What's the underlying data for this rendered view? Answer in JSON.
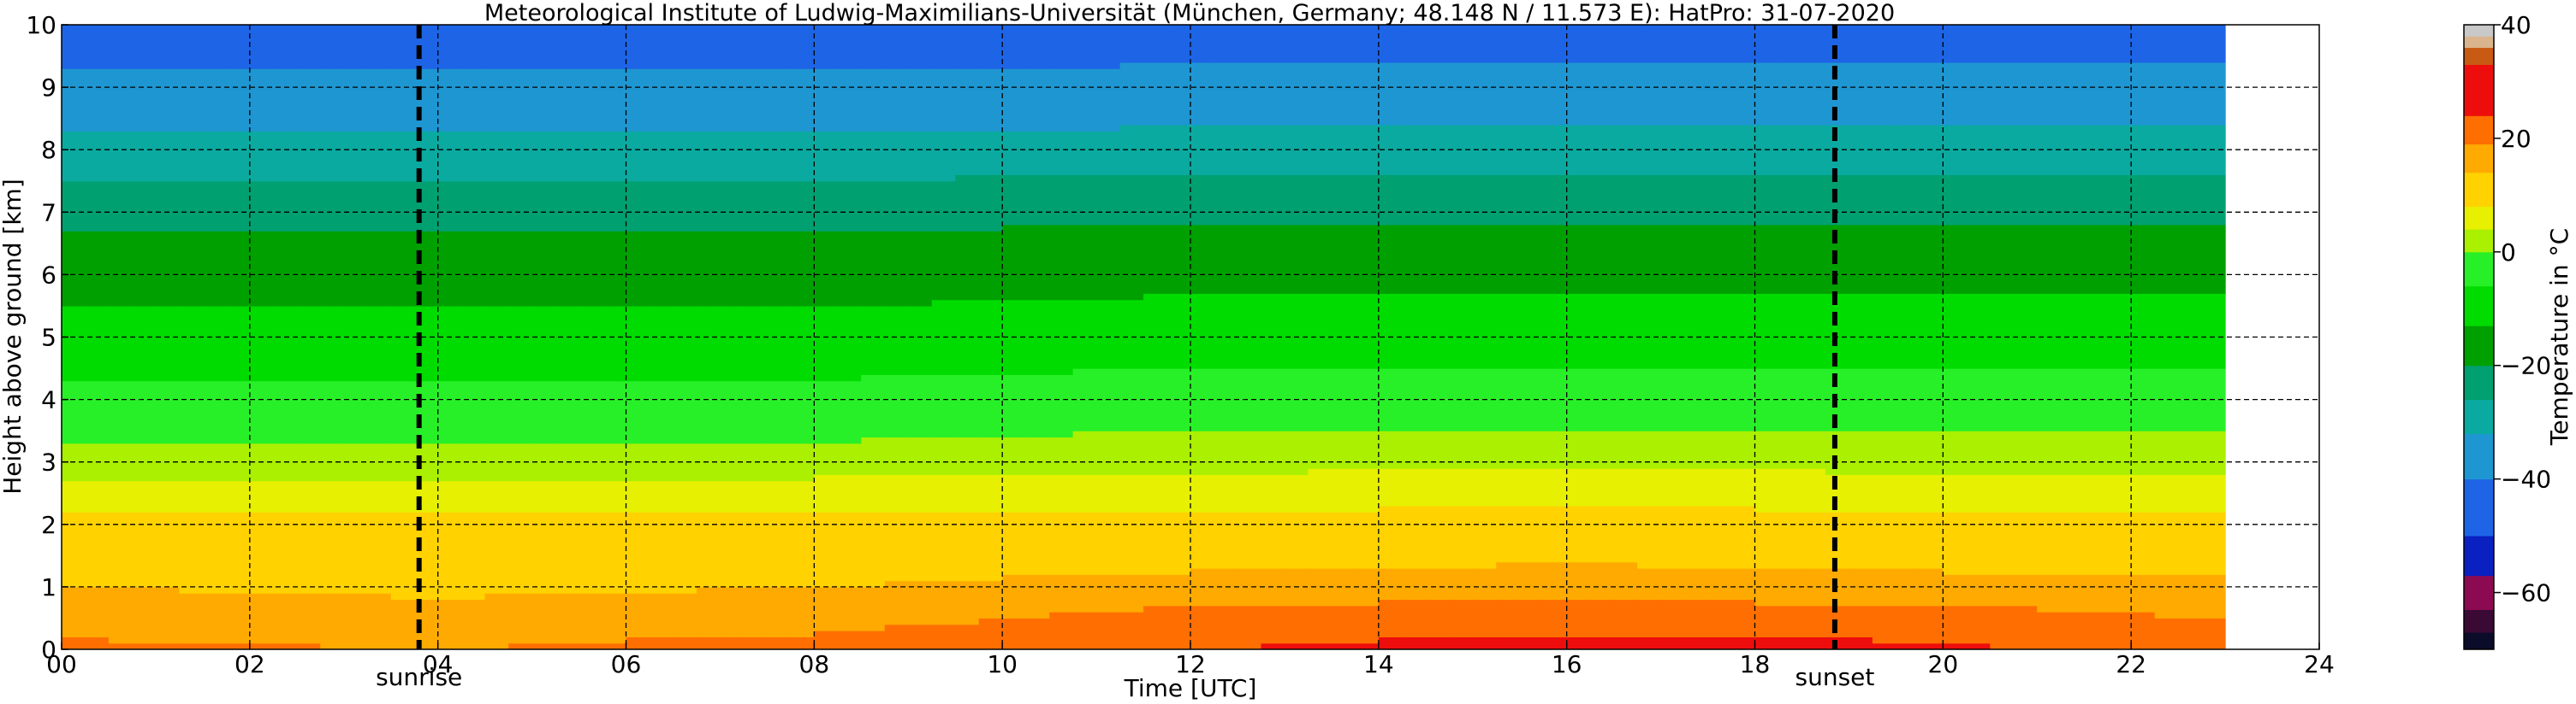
{
  "chart_data": {
    "type": "heatmap",
    "title": "Meteorological Institute of Ludwig-Maximilians-Universität (München, Germany; 48.148 N / 11.573 E):    HatPro: 31-07-2020",
    "xlabel": "Time [UTC]",
    "ylabel": "Height above ground [km]",
    "xlim": [
      0,
      24
    ],
    "ylim": [
      0,
      10
    ],
    "x_ticks": [
      0,
      2,
      4,
      6,
      8,
      10,
      12,
      14,
      16,
      18,
      20,
      22,
      24
    ],
    "x_tick_labels": [
      "00",
      "02",
      "04",
      "06",
      "08",
      "10",
      "12",
      "14",
      "16",
      "18",
      "20",
      "22",
      "24"
    ],
    "y_ticks": [
      0,
      1,
      2,
      3,
      4,
      5,
      6,
      7,
      8,
      9,
      10
    ],
    "y_tick_labels": [
      "0",
      "1",
      "2",
      "3",
      "4",
      "5",
      "6",
      "7",
      "8",
      "9",
      "10"
    ],
    "grid": true,
    "data_end_time": 23.0,
    "heights_km": [
      0,
      0.5,
      1,
      1.5,
      2,
      2.5,
      3,
      3.5,
      4,
      5,
      6,
      7,
      8,
      9,
      10
    ],
    "times_utc": [
      0,
      4,
      8,
      12,
      16,
      20,
      23
    ],
    "temperature_c": [
      [
        20,
        19,
        21,
        24,
        26,
        25,
        22
      ],
      [
        17,
        16,
        17,
        21,
        22,
        21,
        19
      ],
      [
        14,
        13,
        14,
        16,
        17,
        16,
        15
      ],
      [
        11,
        11,
        11,
        12,
        13,
        12,
        12
      ],
      [
        9,
        9,
        9,
        9,
        10,
        9,
        9
      ],
      [
        6,
        6,
        6,
        6,
        7,
        6,
        6
      ],
      [
        2,
        2,
        2,
        3,
        3,
        3,
        3
      ],
      [
        -1,
        -1,
        -1,
        0,
        0,
        0,
        0
      ],
      [
        -4,
        -4,
        -4,
        -3,
        -3,
        -3,
        -3
      ],
      [
        -10,
        -10,
        -10,
        -9,
        -9,
        -9,
        -9
      ],
      [
        -16,
        -16,
        -16,
        -15,
        -15,
        -15,
        -15
      ],
      [
        -22,
        -22,
        -22,
        -21,
        -21,
        -21,
        -21
      ],
      [
        -30,
        -30,
        -30,
        -29,
        -29,
        -29,
        -29
      ],
      [
        -38,
        -38,
        -38,
        -37,
        -37,
        -37,
        -37
      ],
      [
        -46,
        -46,
        -46,
        -45,
        -45,
        -45,
        -45
      ]
    ],
    "annotations": [
      {
        "label": "sunrise",
        "time_utc": 3.8
      },
      {
        "label": "sunset",
        "time_utc": 18.85
      }
    ],
    "colorbar": {
      "label": "Temperature in °C",
      "range": [
        -70,
        40
      ],
      "ticks": [
        40,
        20,
        0,
        -20,
        -40,
        -60
      ],
      "tick_labels": [
        "40",
        "20",
        "0",
        "−20",
        "−40",
        "−60"
      ],
      "colors": [
        {
          "from": -70,
          "to": -67,
          "color": "#0b0b2a"
        },
        {
          "from": -67,
          "to": -63,
          "color": "#3a0a35"
        },
        {
          "from": -63,
          "to": -57,
          "color": "#8b0a52"
        },
        {
          "from": -57,
          "to": -50,
          "color": "#0a20c0"
        },
        {
          "from": -50,
          "to": -40,
          "color": "#1e64e6"
        },
        {
          "from": -40,
          "to": -32,
          "color": "#1e96d2"
        },
        {
          "from": -32,
          "to": -26,
          "color": "#0aaaa0"
        },
        {
          "from": -26,
          "to": -20,
          "color": "#00a070"
        },
        {
          "from": -20,
          "to": -13,
          "color": "#00a000"
        },
        {
          "from": -13,
          "to": -6,
          "color": "#00dc00"
        },
        {
          "from": -6,
          "to": 0,
          "color": "#28f028"
        },
        {
          "from": 0,
          "to": 4,
          "color": "#aaf000"
        },
        {
          "from": 4,
          "to": 8,
          "color": "#e6f000"
        },
        {
          "from": 8,
          "to": 14,
          "color": "#ffd200"
        },
        {
          "from": 14,
          "to": 19,
          "color": "#ffaa00"
        },
        {
          "from": 19,
          "to": 24,
          "color": "#ff6e00"
        },
        {
          "from": 24,
          "to": 33,
          "color": "#ee0d0d"
        },
        {
          "from": 33,
          "to": 36,
          "color": "#c85a14"
        },
        {
          "from": 36,
          "to": 38,
          "color": "#d9b48c"
        },
        {
          "from": 38,
          "to": 40,
          "color": "#c8c8c8"
        }
      ]
    },
    "colors": {
      "annotation_line": "#000000",
      "grid": "#000000",
      "background": "#ffffff"
    }
  }
}
